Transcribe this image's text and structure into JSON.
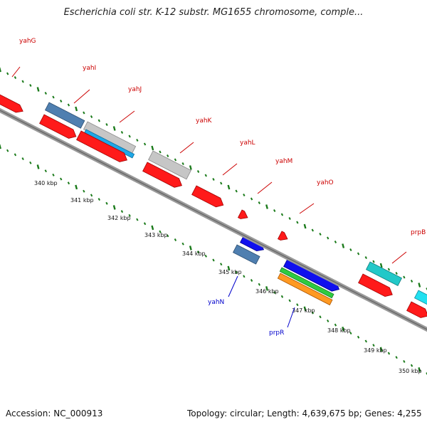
{
  "title": "Escherichia coli str. K-12 substr. MG1655 chromosome, comple...",
  "footer": {
    "accession": "Accession: NC_000913",
    "summary": "Topology: circular; Length: 4,639,675 bp; Genes: 4,255"
  },
  "colors": {
    "backbone": "#8a8a8a",
    "tick": "#1a7a1a",
    "forward_label": "#cc0000",
    "reverse_label": "#0000cc"
  },
  "scale": {
    "tick_labels": [
      "340 kbp",
      "341 kbp",
      "342 kbp",
      "343 kbp",
      "344 kbp",
      "345 kbp",
      "346 kbp",
      "347 kbp",
      "348 kbp",
      "349 kbp",
      "350 kbp"
    ]
  },
  "gene_labels": [
    {
      "text": "yahG",
      "strand": "forward"
    },
    {
      "text": "yahI",
      "strand": "forward"
    },
    {
      "text": "yahJ",
      "strand": "forward"
    },
    {
      "text": "yahK",
      "strand": "forward"
    },
    {
      "text": "yahL",
      "strand": "forward"
    },
    {
      "text": "yahM",
      "strand": "forward"
    },
    {
      "text": "yahO",
      "strand": "forward"
    },
    {
      "text": "prpB",
      "strand": "forward"
    },
    {
      "text": "yahN",
      "strand": "reverse"
    },
    {
      "text": "prpR",
      "strand": "reverse"
    }
  ]
}
